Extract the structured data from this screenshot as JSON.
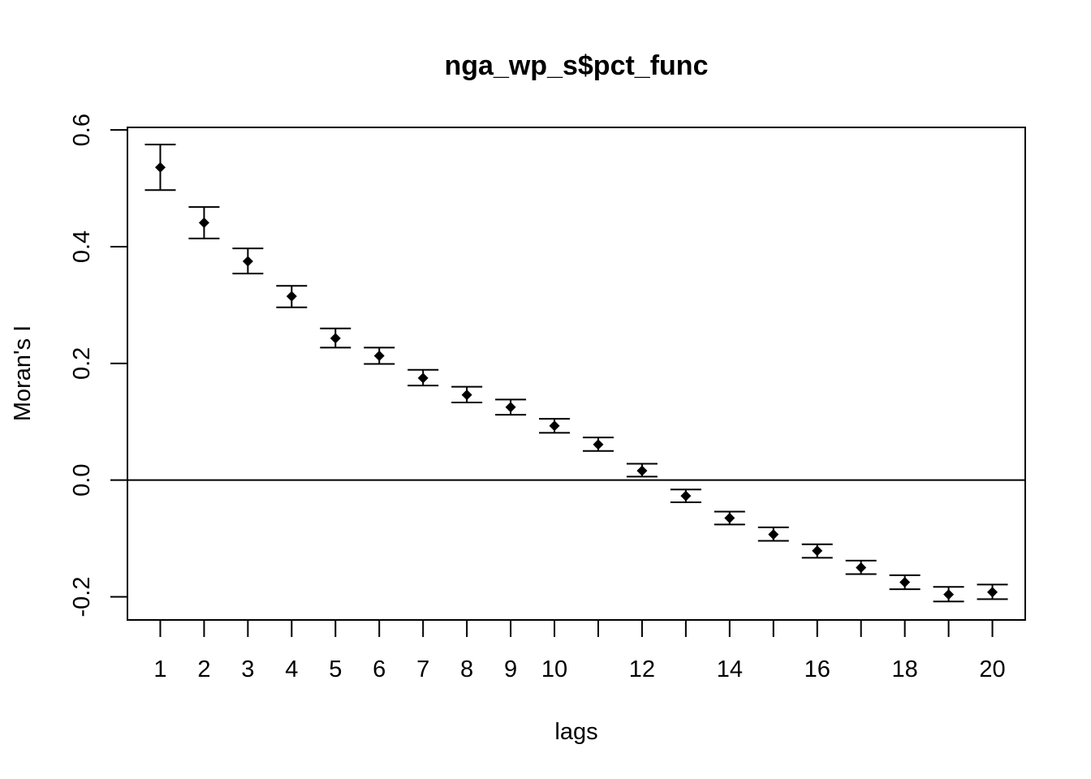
{
  "chart_data": {
    "type": "scatter",
    "title": "nga_wp_s$pct_func",
    "xlabel": "lags",
    "ylabel": "Moran's  I",
    "xlim": [
      0.25,
      20.75
    ],
    "ylim": [
      -0.2396,
      0.6044
    ],
    "x_tick_labels": [
      "1",
      "2",
      "3",
      "4",
      "5",
      "6",
      "7",
      "8",
      "9",
      "10",
      "12",
      "14",
      "16",
      "18",
      "20"
    ],
    "y_tick_labels": [
      "-0.2",
      "0.0",
      "0.2",
      "0.4",
      "0.6"
    ],
    "reference_line_y": 0,
    "series": [
      {
        "marker": "diamond",
        "x": [
          1,
          2,
          3,
          4,
          5,
          6,
          7,
          8,
          9,
          10,
          11,
          12,
          13,
          14,
          15,
          16,
          17,
          18,
          19,
          20
        ],
        "y": [
          0.536,
          0.441,
          0.375,
          0.315,
          0.243,
          0.213,
          0.175,
          0.146,
          0.125,
          0.093,
          0.061,
          0.016,
          -0.027,
          -0.065,
          -0.093,
          -0.121,
          -0.15,
          -0.175,
          -0.196,
          -0.192
        ],
        "lower": [
          0.497,
          0.414,
          0.354,
          0.296,
          0.227,
          0.199,
          0.162,
          0.133,
          0.112,
          0.081,
          0.05,
          0.006,
          -0.038,
          -0.076,
          -0.104,
          -0.133,
          -0.161,
          -0.187,
          -0.208,
          -0.204
        ],
        "upper": [
          0.575,
          0.468,
          0.397,
          0.333,
          0.26,
          0.227,
          0.189,
          0.16,
          0.138,
          0.105,
          0.073,
          0.028,
          -0.016,
          -0.054,
          -0.081,
          -0.11,
          -0.138,
          -0.163,
          -0.183,
          -0.179
        ]
      }
    ]
  }
}
